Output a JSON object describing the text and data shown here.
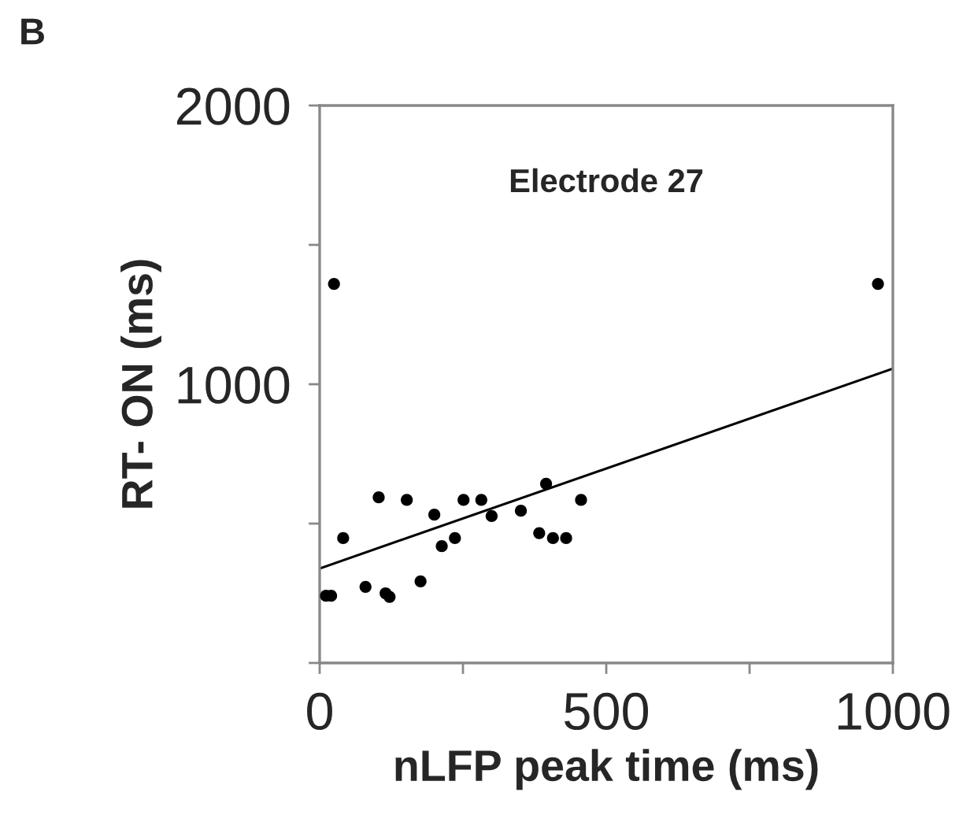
{
  "chart_data": {
    "type": "scatter",
    "title": "Electrode 27",
    "xlabel": "nLFP peak time (ms)",
    "ylabel": "RT- ON (ms)",
    "annotations": [
      "B"
    ],
    "series": [
      {
        "marker": "circle",
        "color": "#000000",
        "x": [
          25,
          974,
          11,
          20,
          41,
          80,
          103,
          115,
          122,
          152,
          176,
          200,
          213,
          236,
          251,
          282,
          300,
          351,
          383,
          395,
          407,
          430,
          456
        ],
        "values": [
          1360,
          1360,
          241,
          241,
          448,
          273,
          594,
          250,
          237,
          585,
          293,
          532,
          419,
          448,
          585,
          585,
          527,
          546,
          466,
          643,
          448,
          448,
          585
        ]
      },
      {
        "type": "line",
        "marker": "none",
        "color": "#000000",
        "x": [
          0,
          1000
        ],
        "values": [
          339,
          1056
        ]
      }
    ],
    "xlim": [
      0,
      1000
    ],
    "ylim": [
      0,
      2000
    ],
    "xticks": [
      0,
      {
        "value": 250,
        "label": null
      },
      500,
      {
        "value": 750,
        "label": null
      },
      1000
    ],
    "yticks": [
      {
        "value": 0,
        "label": null
      },
      {
        "value": 500,
        "label": null
      },
      1000,
      {
        "value": 1500,
        "label": null
      },
      2000
    ],
    "grid": false,
    "legend": false
  }
}
